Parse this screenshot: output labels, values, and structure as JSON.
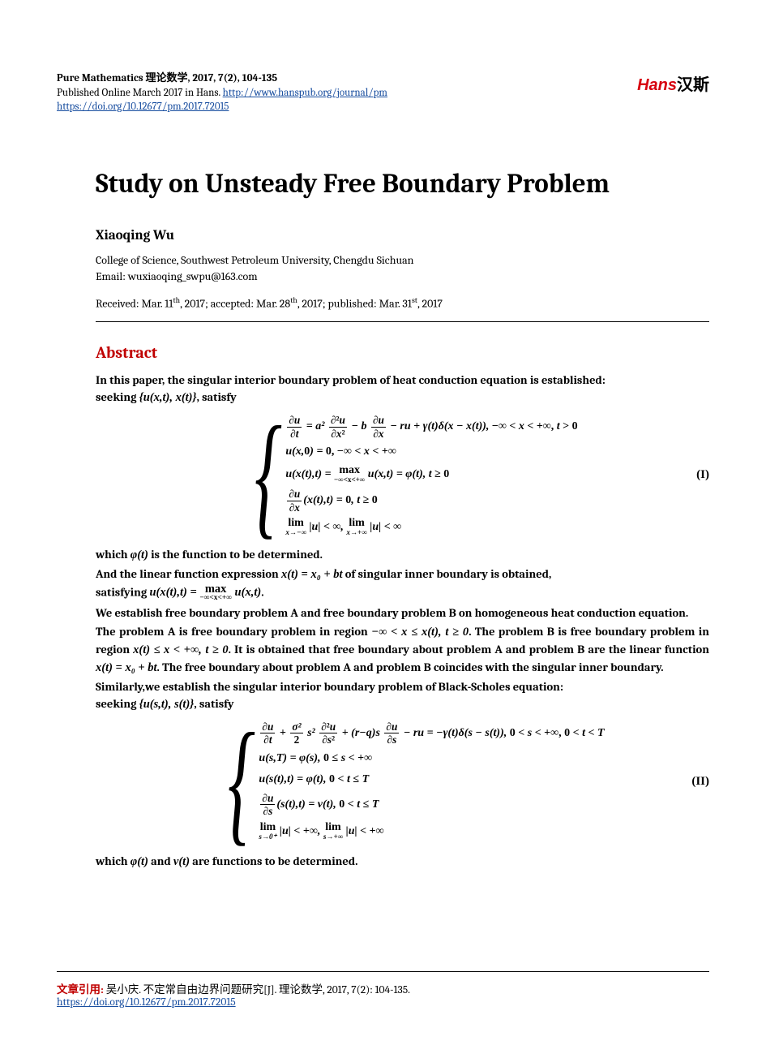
{
  "header": {
    "journal_line": "Pure Mathematics  理论数学, 2017, 7(2), 104-135",
    "pub_line_prefix": "Published Online March 2017 in Hans. ",
    "journal_url": "http://www.hanspub.org/journal/pm",
    "doi_url": "https://doi.org/10.12677/pm.2017.72015"
  },
  "logo": {
    "hans": "Hans",
    "ch": "汉斯"
  },
  "title": "Study on Unsteady Free Boundary Problem",
  "author": "Xiaoqing Wu",
  "affiliation": "College of Science, Southwest Petroleum University, Chengdu Sichuan",
  "email_label": "Email: ",
  "email": "wuxiaoqing_swpu@163.com",
  "dates": {
    "received_lbl": "Received: Mar. 11",
    "received_sup": "th",
    "accepted_lbl": ", 2017; accepted: Mar. 28",
    "accepted_sup": "th",
    "published_lbl": ", 2017; published: Mar. 31",
    "published_sup": "st",
    "tail": ", 2017"
  },
  "abstract_heading": "Abstract",
  "abs": {
    "p1a": "In this paper, the singular interior boundary problem of heat conduction equation is established:",
    "p1b": "seeking ",
    "seek1": "{u(x,t), x(t)}",
    "p1c": ", satisfy",
    "eq1_num": "(I)",
    "p2a": "which ",
    "phi_t": "φ(t)",
    "p2b": " is the function to be determined.",
    "p3a": "And the linear function expression ",
    "xt_expr": "x(t) = x₀ + bt",
    "p3b": " of singular inner boundary is obtained,",
    "p3c": "satisfying ",
    "sat_expr": "u(x(t),t) = max u(x,t)",
    "maxsub": "−∞<x<+∞",
    "p4": "We establish free boundary problem A and free boundary problem B on homogeneous heat conduction equation.",
    "p5a": "The problem A is free boundary problem in region ",
    "regA": "−∞ < x ≤ x(t), t ≥ 0",
    "p5b": ". The problem B is free",
    "p5c": "boundary problem in region ",
    "regB": "x(t) ≤ x < +∞, t ≥ 0",
    "p5d": ". It is obtained that free boundary about problem",
    "p5e": "A and problem B are the linear function ",
    "p5f": ". The free boundary about problem A and",
    "p5g": "problem B coincides with the singular inner boundary.",
    "p6a": "Similarly,we establish the singular interior boundary problem of Black-Scholes equation:",
    "p6b": "seeking ",
    "seek2": "{u(s,t), s(t)}",
    "p6c": ", satisfy",
    "eq2_num": "(II)",
    "p7a": "which ",
    "p7b": " and ",
    "vt": "v(t)",
    "p7c": " are functions to be determined."
  },
  "sys1": {
    "l1": "∂u/∂t = a² ∂²u/∂x² − b ∂u/∂x − ru + γ(t)δ(x − x(t)), −∞ < x < +∞, t > 0",
    "l2": "u(x,0) = 0, −∞ < x < +∞",
    "l3": "u(x(t),t) = max u(x,t) = φ(t), t ≥ 0",
    "l3sub": "−∞<x<+∞",
    "l4": "∂u/∂x (x(t),t) = 0, t ≥ 0",
    "l5a": "lim |u| < ∞,",
    "l5asub": "x→−∞",
    "l5b": "lim |u| < ∞",
    "l5bsub": "x→+∞"
  },
  "sys2": {
    "l1": "∂u/∂t + (σ²/2) s² ∂²u/∂s² + (r−q) s ∂u/∂s − ru = −γ(t)δ(s − s(t)), 0 < s < +∞, 0 < t < T",
    "l2": "u(s,T) = φ(s), 0 ≤ s < +∞",
    "l3": "u(s(t),t) = φ(t), 0 < t ≤ T",
    "l4": "∂u/∂s (s(t),t) = v(t), 0 < t ≤ T",
    "l5a": "lim |u| < +∞,",
    "l5asub": "s→0⁺",
    "l5b": "lim |u| < +∞",
    "l5bsub": "s→+∞"
  },
  "footer": {
    "label": "文章引用: ",
    "text": "吴小庆. 不定常自由边界问题研究[J]. 理论数学, 2017, 7(2): 104-135.",
    "doi": "https://doi.org/10.12677/pm.2017.72015"
  },
  "colors": {
    "link": "#1a4fa0",
    "accent": "#c00000",
    "logo_red": "#d7000f",
    "text": "#000000",
    "bg": "#ffffff"
  }
}
